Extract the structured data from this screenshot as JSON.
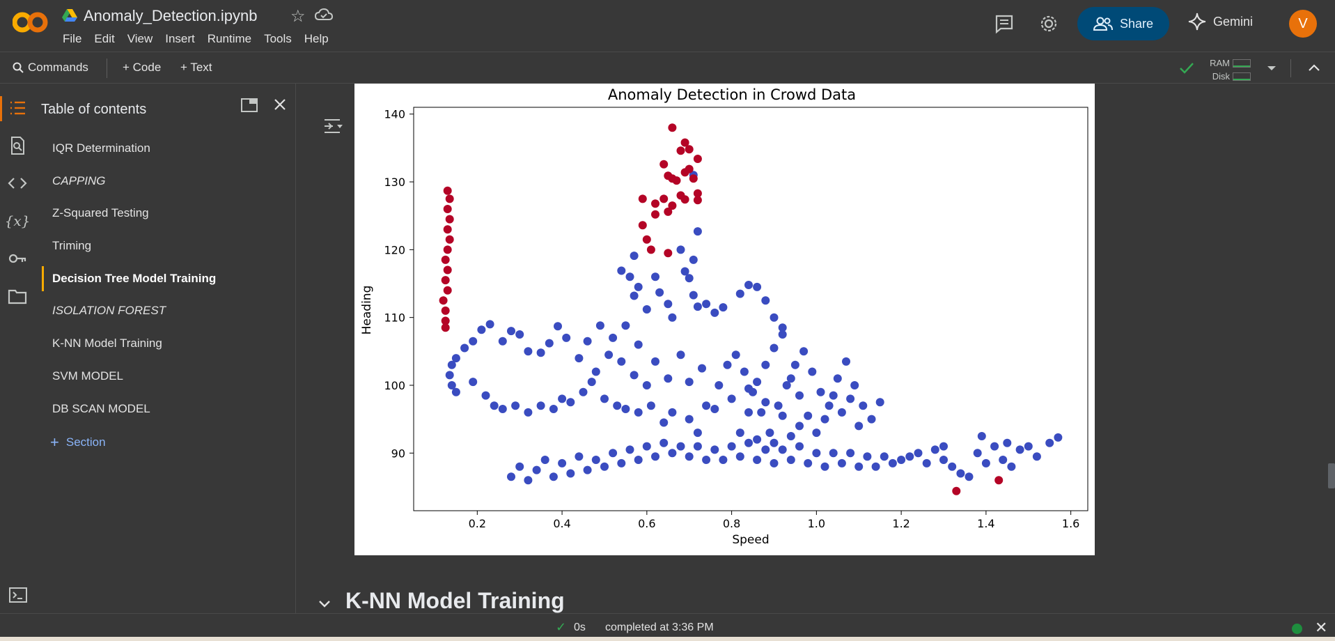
{
  "header": {
    "file_name": "Anomaly_Detection.ipynb",
    "menu": [
      "File",
      "Edit",
      "View",
      "Insert",
      "Runtime",
      "Tools",
      "Help"
    ],
    "share_label": "Share",
    "gemini_label": "Gemini",
    "avatar_initial": "V",
    "colors": {
      "share_bg": "#004a77",
      "avatar_bg": "#e8710a",
      "logo_orange": "#f9ab00"
    }
  },
  "toolbar": {
    "commands_label": "Commands",
    "add_code_label": "+ Code",
    "add_text_label": "+ Text",
    "ram_label": "RAM",
    "disk_label": "Disk"
  },
  "toc": {
    "title": "Table of contents",
    "items": [
      {
        "label": "IQR Determination",
        "style": "normal"
      },
      {
        "label": "CAPPING",
        "style": "italic"
      },
      {
        "label": "Z-Squared Testing",
        "style": "normal"
      },
      {
        "label": "Triming",
        "style": "normal"
      },
      {
        "label": "Decision Tree Model Training",
        "style": "active"
      },
      {
        "label": "ISOLATION FOREST",
        "style": "italic"
      },
      {
        "label": "K-NN Model Training",
        "style": "normal"
      },
      {
        "label": "SVM MODEL",
        "style": "normal"
      },
      {
        "label": "DB SCAN MODEL",
        "style": "normal"
      }
    ],
    "add_section_label": "Section"
  },
  "main": {
    "next_section_heading": "K-NN Model Training"
  },
  "status": {
    "duration": "0s",
    "message": "completed at 3:36 PM"
  },
  "chart_data": {
    "type": "scatter",
    "title": "Anomaly Detection in Crowd Data",
    "xlabel": "Speed",
    "ylabel": "Heading",
    "xlim": [
      0.05,
      1.64
    ],
    "ylim": [
      81.5,
      141
    ],
    "xticks": [
      0.2,
      0.4,
      0.6,
      0.8,
      1.0,
      1.2,
      1.4,
      1.6
    ],
    "yticks": [
      90,
      100,
      110,
      120,
      130,
      140
    ],
    "grid": false,
    "colors": {
      "normal": "#3a4cc0",
      "anomaly": "#b40426"
    },
    "series": [
      {
        "class": "anomaly",
        "points": [
          [
            0.66,
            138.0
          ],
          [
            0.69,
            135.8
          ],
          [
            0.7,
            134.8
          ],
          [
            0.68,
            134.6
          ],
          [
            0.72,
            133.4
          ],
          [
            0.64,
            132.6
          ],
          [
            0.7,
            131.9
          ],
          [
            0.69,
            131.4
          ],
          [
            0.65,
            130.9
          ],
          [
            0.66,
            130.5
          ],
          [
            0.67,
            130.2
          ],
          [
            0.71,
            130.5
          ],
          [
            0.72,
            128.3
          ],
          [
            0.68,
            128.0
          ],
          [
            0.69,
            127.4
          ],
          [
            0.72,
            127.3
          ],
          [
            0.59,
            127.5
          ],
          [
            0.64,
            127.5
          ],
          [
            0.62,
            126.8
          ],
          [
            0.66,
            126.5
          ],
          [
            0.62,
            125.2
          ],
          [
            0.65,
            125.6
          ],
          [
            0.59,
            123.6
          ],
          [
            0.6,
            121.5
          ],
          [
            0.61,
            120.0
          ],
          [
            0.65,
            119.5
          ],
          [
            0.13,
            128.7
          ],
          [
            0.135,
            127.5
          ],
          [
            0.13,
            126.0
          ],
          [
            0.135,
            124.5
          ],
          [
            0.13,
            123.0
          ],
          [
            0.135,
            121.5
          ],
          [
            0.13,
            120.0
          ],
          [
            0.125,
            118.5
          ],
          [
            0.13,
            117.0
          ],
          [
            0.125,
            115.5
          ],
          [
            0.13,
            114.0
          ],
          [
            0.12,
            112.5
          ],
          [
            0.125,
            111.0
          ],
          [
            0.125,
            109.5
          ],
          [
            0.125,
            108.5
          ],
          [
            1.33,
            84.4
          ],
          [
            1.43,
            86.0
          ]
        ]
      },
      {
        "class": "normal",
        "points": [
          [
            0.71,
            131.0
          ],
          [
            0.72,
            122.7
          ],
          [
            0.71,
            118.5
          ],
          [
            0.57,
            119.1
          ],
          [
            0.68,
            120.0
          ],
          [
            0.69,
            116.8
          ],
          [
            0.54,
            116.9
          ],
          [
            0.56,
            116.0
          ],
          [
            0.58,
            114.5
          ],
          [
            0.62,
            116.0
          ],
          [
            0.63,
            113.7
          ],
          [
            0.7,
            115.8
          ],
          [
            0.57,
            113.2
          ],
          [
            0.6,
            111.2
          ],
          [
            0.65,
            112.0
          ],
          [
            0.66,
            110.0
          ],
          [
            0.71,
            113.3
          ],
          [
            0.72,
            111.6
          ],
          [
            0.74,
            112.0
          ],
          [
            0.76,
            110.7
          ],
          [
            0.78,
            111.5
          ],
          [
            0.82,
            113.5
          ],
          [
            0.84,
            114.8
          ],
          [
            0.86,
            114.5
          ],
          [
            0.88,
            112.5
          ],
          [
            0.9,
            110.0
          ],
          [
            0.92,
            108.5
          ],
          [
            0.55,
            108.8
          ],
          [
            0.58,
            106.0
          ],
          [
            0.52,
            107.0
          ],
          [
            0.49,
            108.8
          ],
          [
            0.46,
            106.5
          ],
          [
            0.44,
            104.0
          ],
          [
            0.41,
            107.0
          ],
          [
            0.39,
            108.7
          ],
          [
            0.37,
            106.2
          ],
          [
            0.35,
            104.8
          ],
          [
            0.32,
            105.0
          ],
          [
            0.3,
            107.5
          ],
          [
            0.28,
            108.0
          ],
          [
            0.26,
            106.5
          ],
          [
            0.23,
            109.0
          ],
          [
            0.21,
            108.2
          ],
          [
            0.19,
            106.5
          ],
          [
            0.17,
            105.5
          ],
          [
            0.15,
            104.0
          ],
          [
            0.14,
            103.0
          ],
          [
            0.135,
            101.5
          ],
          [
            0.14,
            100.0
          ],
          [
            0.15,
            99.0
          ],
          [
            0.19,
            100.5
          ],
          [
            0.22,
            98.5
          ],
          [
            0.24,
            97.0
          ],
          [
            0.26,
            96.5
          ],
          [
            0.29,
            97.0
          ],
          [
            0.32,
            96.0
          ],
          [
            0.35,
            97.0
          ],
          [
            0.38,
            96.5
          ],
          [
            0.4,
            98.0
          ],
          [
            0.42,
            97.5
          ],
          [
            0.45,
            99.0
          ],
          [
            0.47,
            100.5
          ],
          [
            0.5,
            98.0
          ],
          [
            0.53,
            97.0
          ],
          [
            0.55,
            96.5
          ],
          [
            0.58,
            96.0
          ],
          [
            0.61,
            97.0
          ],
          [
            0.64,
            94.5
          ],
          [
            0.66,
            96.0
          ],
          [
            0.7,
            95.0
          ],
          [
            0.72,
            93.0
          ],
          [
            0.74,
            97.0
          ],
          [
            0.77,
            100.0
          ],
          [
            0.79,
            103.0
          ],
          [
            0.81,
            104.5
          ],
          [
            0.83,
            102.0
          ],
          [
            0.85,
            99.0
          ],
          [
            0.87,
            96.0
          ],
          [
            0.89,
            93.0
          ],
          [
            0.91,
            97.0
          ],
          [
            0.93,
            100.0
          ],
          [
            0.95,
            103.0
          ],
          [
            0.97,
            105.0
          ],
          [
            0.99,
            102.0
          ],
          [
            1.01,
            99.0
          ],
          [
            1.03,
            97.0
          ],
          [
            1.05,
            101.0
          ],
          [
            1.07,
            103.5
          ],
          [
            1.09,
            100.0
          ],
          [
            1.11,
            97.0
          ],
          [
            1.13,
            95.0
          ],
          [
            1.15,
            97.5
          ],
          [
            0.62,
            103.5
          ],
          [
            0.65,
            101.0
          ],
          [
            0.68,
            104.5
          ],
          [
            0.7,
            100.5
          ],
          [
            0.73,
            102.5
          ],
          [
            0.76,
            96.5
          ],
          [
            0.6,
            100.0
          ],
          [
            0.57,
            101.5
          ],
          [
            0.54,
            103.5
          ],
          [
            0.51,
            104.5
          ],
          [
            0.48,
            102.0
          ],
          [
            0.8,
            98.0
          ],
          [
            0.84,
            96.0
          ],
          [
            0.86,
            100.5
          ],
          [
            0.88,
            103.0
          ],
          [
            0.9,
            105.5
          ],
          [
            0.92,
            107.5
          ],
          [
            0.94,
            101.0
          ],
          [
            0.96,
            98.5
          ],
          [
            0.98,
            95.5
          ],
          [
            1.0,
            93.0
          ],
          [
            1.02,
            95.0
          ],
          [
            1.04,
            98.5
          ],
          [
            1.06,
            96.0
          ],
          [
            1.08,
            98.0
          ],
          [
            1.1,
            94.0
          ],
          [
            0.82,
            93.0
          ],
          [
            0.86,
            92.0
          ],
          [
            0.9,
            91.5
          ],
          [
            0.94,
            92.5
          ],
          [
            0.88,
            97.5
          ],
          [
            0.92,
            95.5
          ],
          [
            0.96,
            94.0
          ],
          [
            0.84,
            99.5
          ],
          [
            0.28,
            86.5
          ],
          [
            0.3,
            88.0
          ],
          [
            0.32,
            86.0
          ],
          [
            0.34,
            87.5
          ],
          [
            0.36,
            89.0
          ],
          [
            0.38,
            86.5
          ],
          [
            0.4,
            88.5
          ],
          [
            0.42,
            87.0
          ],
          [
            0.44,
            89.5
          ],
          [
            0.46,
            87.5
          ],
          [
            0.48,
            89.0
          ],
          [
            0.5,
            88.0
          ],
          [
            0.52,
            90.0
          ],
          [
            0.54,
            88.5
          ],
          [
            0.56,
            90.5
          ],
          [
            0.58,
            89.0
          ],
          [
            0.6,
            91.0
          ],
          [
            0.62,
            89.5
          ],
          [
            0.64,
            91.5
          ],
          [
            0.66,
            90.0
          ],
          [
            0.68,
            91.0
          ],
          [
            0.7,
            89.5
          ],
          [
            0.72,
            91.0
          ],
          [
            0.74,
            89.0
          ],
          [
            0.76,
            90.5
          ],
          [
            0.78,
            89.0
          ],
          [
            0.8,
            91.0
          ],
          [
            0.82,
            89.5
          ],
          [
            0.84,
            91.5
          ],
          [
            0.86,
            89.0
          ],
          [
            0.88,
            90.5
          ],
          [
            0.9,
            88.5
          ],
          [
            0.92,
            90.5
          ],
          [
            0.94,
            89.0
          ],
          [
            0.96,
            91.0
          ],
          [
            0.98,
            88.5
          ],
          [
            1.0,
            90.0
          ],
          [
            1.02,
            88.0
          ],
          [
            1.04,
            90.0
          ],
          [
            1.06,
            88.5
          ],
          [
            1.08,
            90.0
          ],
          [
            1.1,
            88.0
          ],
          [
            1.12,
            89.5
          ],
          [
            1.14,
            88.0
          ],
          [
            1.16,
            89.5
          ],
          [
            1.18,
            88.5
          ],
          [
            1.2,
            89.0
          ],
          [
            1.22,
            89.5
          ],
          [
            1.24,
            90.0
          ],
          [
            1.26,
            88.5
          ],
          [
            1.28,
            90.5
          ],
          [
            1.3,
            89.0
          ],
          [
            1.32,
            88.0
          ],
          [
            1.34,
            87.0
          ],
          [
            1.36,
            86.5
          ],
          [
            1.38,
            90.0
          ],
          [
            1.4,
            88.5
          ],
          [
            1.42,
            91.0
          ],
          [
            1.44,
            89.0
          ],
          [
            1.46,
            88.0
          ],
          [
            1.48,
            90.5
          ],
          [
            1.5,
            91.0
          ],
          [
            1.52,
            89.5
          ],
          [
            1.55,
            91.5
          ],
          [
            1.57,
            92.3
          ],
          [
            1.39,
            92.5
          ],
          [
            1.45,
            91.5
          ],
          [
            1.3,
            91.0
          ]
        ]
      }
    ]
  }
}
